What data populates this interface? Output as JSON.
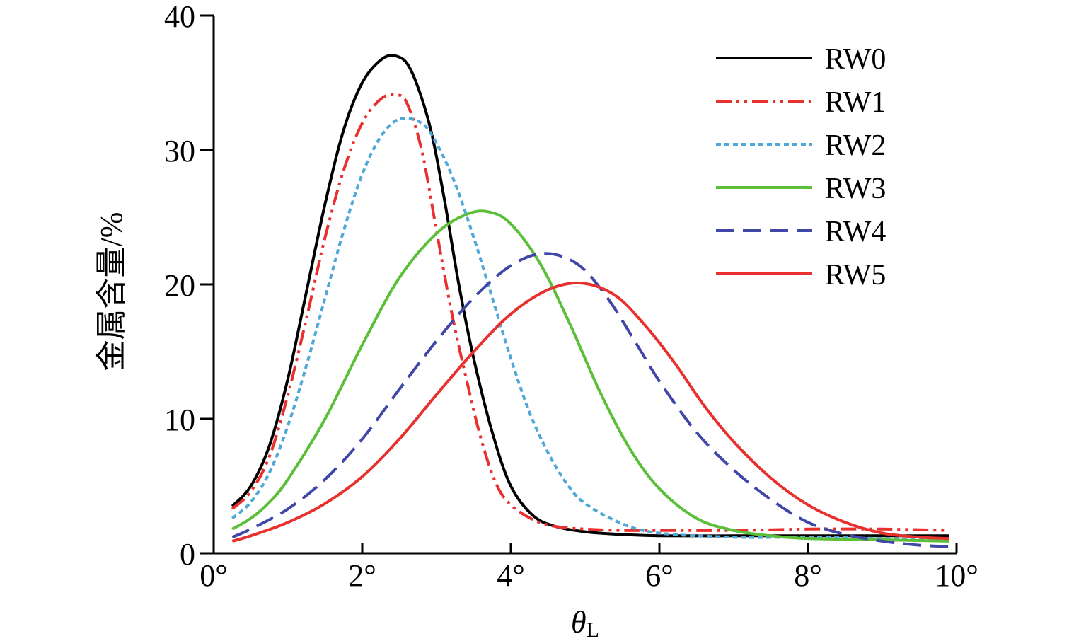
{
  "chart_data": {
    "type": "line",
    "xlabel": "θ",
    "xlabel_sub": "L",
    "ylabel": "金属含量/%",
    "xlim": [
      0,
      10
    ],
    "ylim": [
      0,
      40
    ],
    "x_ticks": [
      0,
      2,
      4,
      6,
      8,
      10
    ],
    "x_tick_labels": [
      "0°",
      "2°",
      "4°",
      "6°",
      "8°",
      "10°"
    ],
    "y_ticks": [
      0,
      10,
      20,
      30,
      40
    ],
    "y_tick_labels": [
      "0",
      "10",
      "20",
      "30",
      "40"
    ],
    "grid": false,
    "legend_position": "top-right",
    "series": [
      {
        "name": "RW0",
        "color": "#000000",
        "dash": "solid",
        "x": [
          0.25,
          0.5,
          0.75,
          1.0,
          1.25,
          1.5,
          1.75,
          2.0,
          2.25,
          2.45,
          2.65,
          2.9,
          3.1,
          3.3,
          3.5,
          3.75,
          4.0,
          4.3,
          4.6,
          5.0,
          5.5,
          6.0,
          7.0,
          8.0,
          9.0,
          9.9
        ],
        "y": [
          3.5,
          5.0,
          8.0,
          13.0,
          19.5,
          26.0,
          31.5,
          35.0,
          36.7,
          37.0,
          36.0,
          32.0,
          26.5,
          20.0,
          14.5,
          9.0,
          5.0,
          2.8,
          2.0,
          1.6,
          1.4,
          1.3,
          1.3,
          1.3,
          1.3,
          1.3
        ]
      },
      {
        "name": "RW1",
        "color": "#e8312f",
        "dash": "dashdotdot",
        "x": [
          0.25,
          0.5,
          0.75,
          1.0,
          1.25,
          1.5,
          1.75,
          2.0,
          2.25,
          2.45,
          2.6,
          2.8,
          3.0,
          3.2,
          3.4,
          3.6,
          3.8,
          4.0,
          4.3,
          4.6,
          5.0,
          5.5,
          6.0,
          7.0,
          8.0,
          9.0,
          9.9
        ],
        "y": [
          3.3,
          4.6,
          7.2,
          11.8,
          17.5,
          23.5,
          28.5,
          32.0,
          33.8,
          34.1,
          33.5,
          30.0,
          24.0,
          18.0,
          13.0,
          8.5,
          5.2,
          3.6,
          2.5,
          2.0,
          1.8,
          1.7,
          1.7,
          1.7,
          1.8,
          1.8,
          1.7
        ]
      },
      {
        "name": "RW2",
        "color": "#4fa8d8",
        "dash": "dotted",
        "x": [
          0.25,
          0.5,
          0.75,
          1.0,
          1.25,
          1.5,
          1.75,
          2.0,
          2.25,
          2.5,
          2.8,
          3.0,
          3.25,
          3.5,
          3.75,
          4.0,
          4.25,
          4.5,
          4.75,
          5.0,
          5.5,
          6.0,
          7.0,
          8.0,
          9.0,
          9.9
        ],
        "y": [
          2.6,
          3.8,
          6.0,
          9.5,
          14.0,
          19.0,
          24.0,
          28.2,
          31.0,
          32.3,
          32.0,
          30.5,
          27.5,
          23.5,
          19.0,
          14.5,
          10.5,
          7.5,
          5.2,
          3.7,
          2.2,
          1.5,
          1.2,
          1.2,
          1.1,
          1.0
        ]
      },
      {
        "name": "RW3",
        "color": "#5cbf3a",
        "dash": "solid",
        "x": [
          0.25,
          0.5,
          0.75,
          1.0,
          1.5,
          2.0,
          2.5,
          3.0,
          3.4,
          3.7,
          4.0,
          4.4,
          4.8,
          5.2,
          5.6,
          6.0,
          6.5,
          7.0,
          7.5,
          8.0,
          9.0,
          9.9
        ],
        "y": [
          1.8,
          2.6,
          3.8,
          5.5,
          10.0,
          15.5,
          20.5,
          23.8,
          25.2,
          25.4,
          24.5,
          21.5,
          17.0,
          12.0,
          7.8,
          4.8,
          2.6,
          1.7,
          1.3,
          1.1,
          1.0,
          0.9
        ]
      },
      {
        "name": "RW4",
        "color": "#3f48a8",
        "dash": "dashed",
        "x": [
          0.25,
          0.5,
          1.0,
          1.5,
          2.0,
          2.5,
          3.0,
          3.5,
          4.0,
          4.45,
          4.9,
          5.3,
          5.7,
          6.0,
          6.5,
          7.0,
          7.5,
          8.0,
          8.5,
          9.0,
          9.5,
          9.9
        ],
        "y": [
          1.2,
          1.8,
          3.3,
          5.5,
          8.5,
          12.2,
          15.8,
          19.0,
          21.4,
          22.3,
          21.5,
          19.0,
          15.5,
          12.8,
          9.0,
          6.2,
          4.0,
          2.3,
          1.4,
          0.9,
          0.6,
          0.5
        ]
      },
      {
        "name": "RW5",
        "color": "#e8312f",
        "dash": "solid",
        "x": [
          0.25,
          0.5,
          1.0,
          1.5,
          2.0,
          2.5,
          3.0,
          3.5,
          4.0,
          4.5,
          4.95,
          5.4,
          5.8,
          6.2,
          6.6,
          7.0,
          7.5,
          8.0,
          8.5,
          9.0,
          9.5,
          9.9
        ],
        "y": [
          0.9,
          1.3,
          2.3,
          3.7,
          5.7,
          8.5,
          11.8,
          15.0,
          17.8,
          19.6,
          20.1,
          19.2,
          17.0,
          14.2,
          11.0,
          8.3,
          5.6,
          3.6,
          2.3,
          1.5,
          1.2,
          1.1
        ]
      }
    ]
  }
}
